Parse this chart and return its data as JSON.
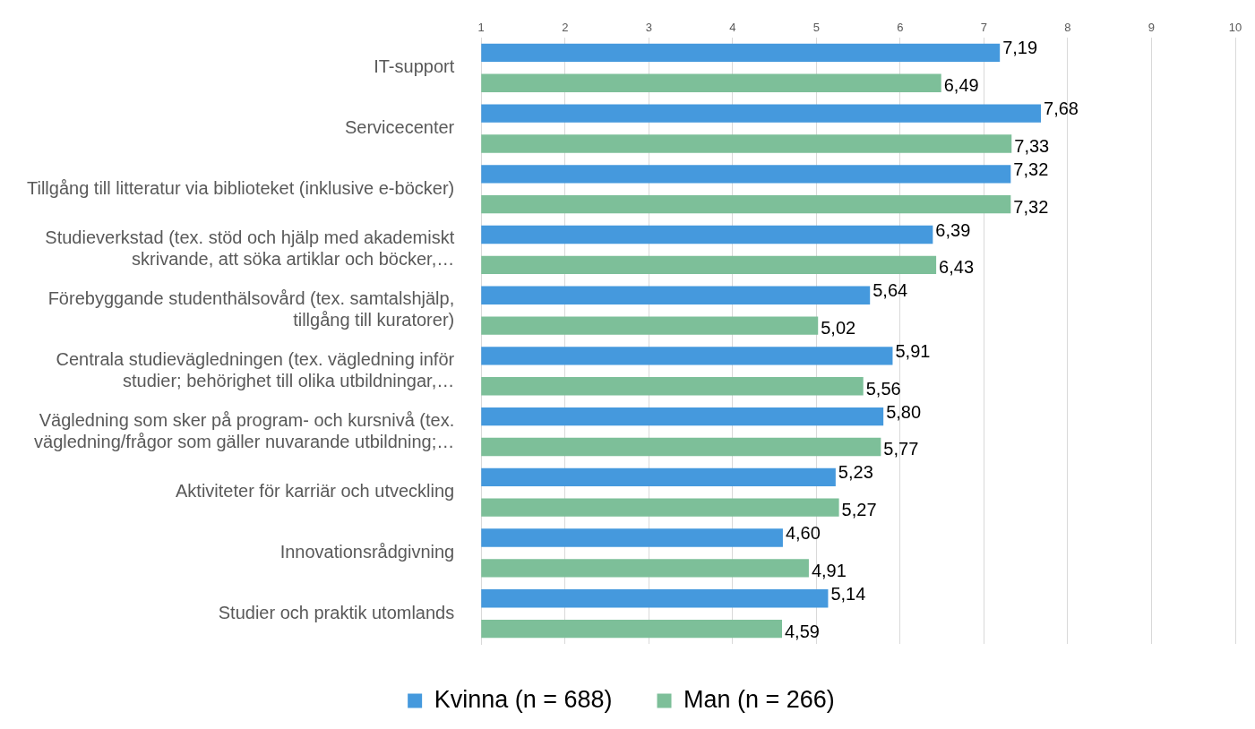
{
  "chart_data": {
    "type": "bar",
    "orientation": "horizontal",
    "categories": [
      "IT-support",
      "Servicecenter",
      "Tillgång till litteratur via biblioteket (inklusive e-böcker)",
      "Studieverkstad (tex. stöd och hjälp med akademiskt\nskrivande, att söka artiklar och böcker,…",
      "Förebyggande studenthälsovård (tex. samtalshjälp,\ntillgång till kuratorer)",
      "Centrala studievägledningen (tex. vägledning inför\nstudier; behörighet till olika utbildningar,…",
      "Vägledning som sker på program- och kursnivå (tex.\nvägledning/frågor som gäller nuvarande utbildning;…",
      "Aktiviteter för karriär och utveckling",
      "Innovationsrådgivning",
      "Studier och praktik utomlands"
    ],
    "series": [
      {
        "name": "Kvinna (n = 688)",
        "color": "#4599dd",
        "values": [
          7.19,
          7.68,
          7.32,
          6.39,
          5.64,
          5.91,
          5.8,
          5.23,
          4.6,
          5.14
        ],
        "value_labels": [
          "7,19",
          "7,68",
          "7,32",
          "6,39",
          "5,64",
          "5,91",
          "5,80",
          "5,23",
          "4,60",
          "5,14"
        ]
      },
      {
        "name": "Man (n = 266)",
        "color": "#7dbf99",
        "values": [
          6.49,
          7.33,
          7.32,
          6.43,
          5.02,
          5.56,
          5.77,
          5.27,
          4.91,
          4.59
        ],
        "value_labels": [
          "6,49",
          "7,33",
          "7,32",
          "6,43",
          "5,02",
          "5,56",
          "5,77",
          "5,27",
          "4,91",
          "4,59"
        ]
      }
    ],
    "xlim": [
      1,
      10
    ],
    "xticks": [
      1,
      2,
      3,
      4,
      5,
      6,
      7,
      8,
      9,
      10
    ],
    "grid": "x",
    "legend": "bottom"
  }
}
